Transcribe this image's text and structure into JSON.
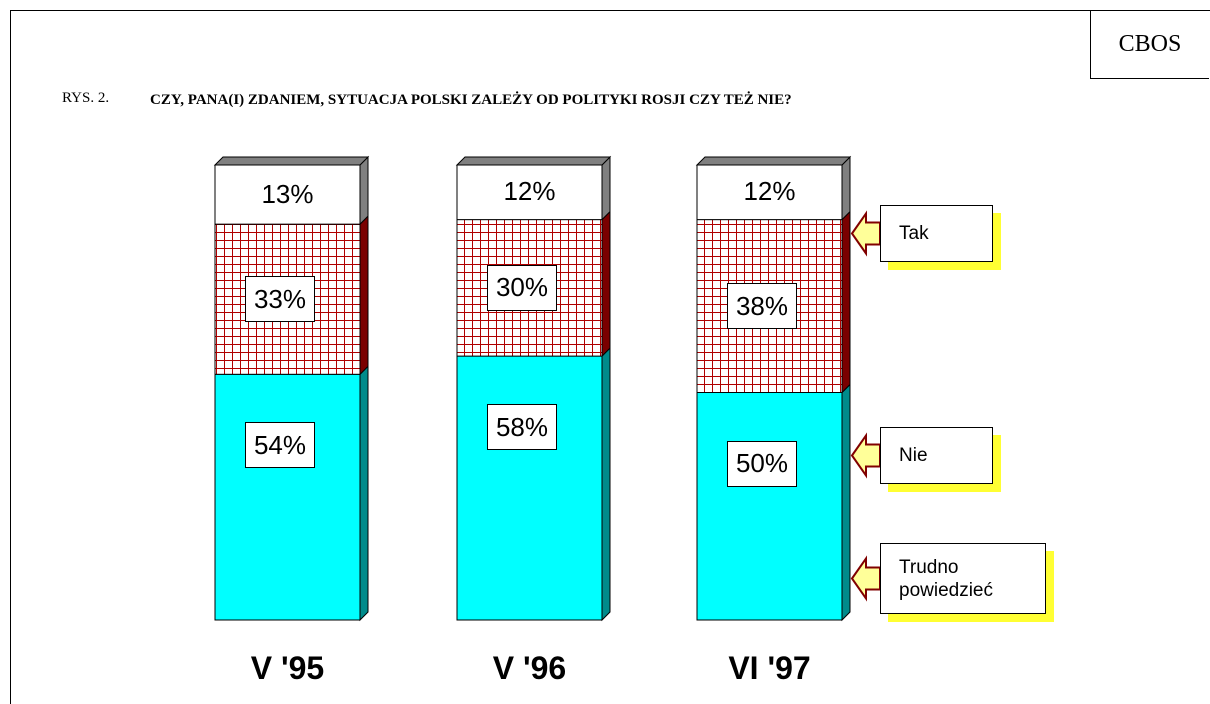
{
  "brand": "CBOS",
  "chart_data": {
    "type": "stacked_bar",
    "figure_label": "RYS. 2.",
    "title": "CZY, PANA(I) ZDANIEM, SYTUACJA POLSKI ZALEŻY OD POLITYKI ROSJI CZY TEŻ NIE?",
    "categories": [
      "V '95",
      "V '96",
      "VI '97"
    ],
    "series": [
      {
        "name": "Tak",
        "color": "#00ffff",
        "values": [
          54,
          58,
          50
        ],
        "value_labels": [
          "54%",
          "58%",
          "50%"
        ]
      },
      {
        "name": "Nie",
        "color": "#cc0000",
        "values": [
          33,
          30,
          38
        ],
        "value_labels": [
          "33%",
          "30%",
          "38%"
        ]
      },
      {
        "name": "Trudno powiedzieć",
        "color": "#ffffff",
        "values": [
          13,
          12,
          12
        ],
        "value_labels": [
          "13%",
          "12%",
          "12%"
        ]
      }
    ],
    "legend": "right"
  }
}
